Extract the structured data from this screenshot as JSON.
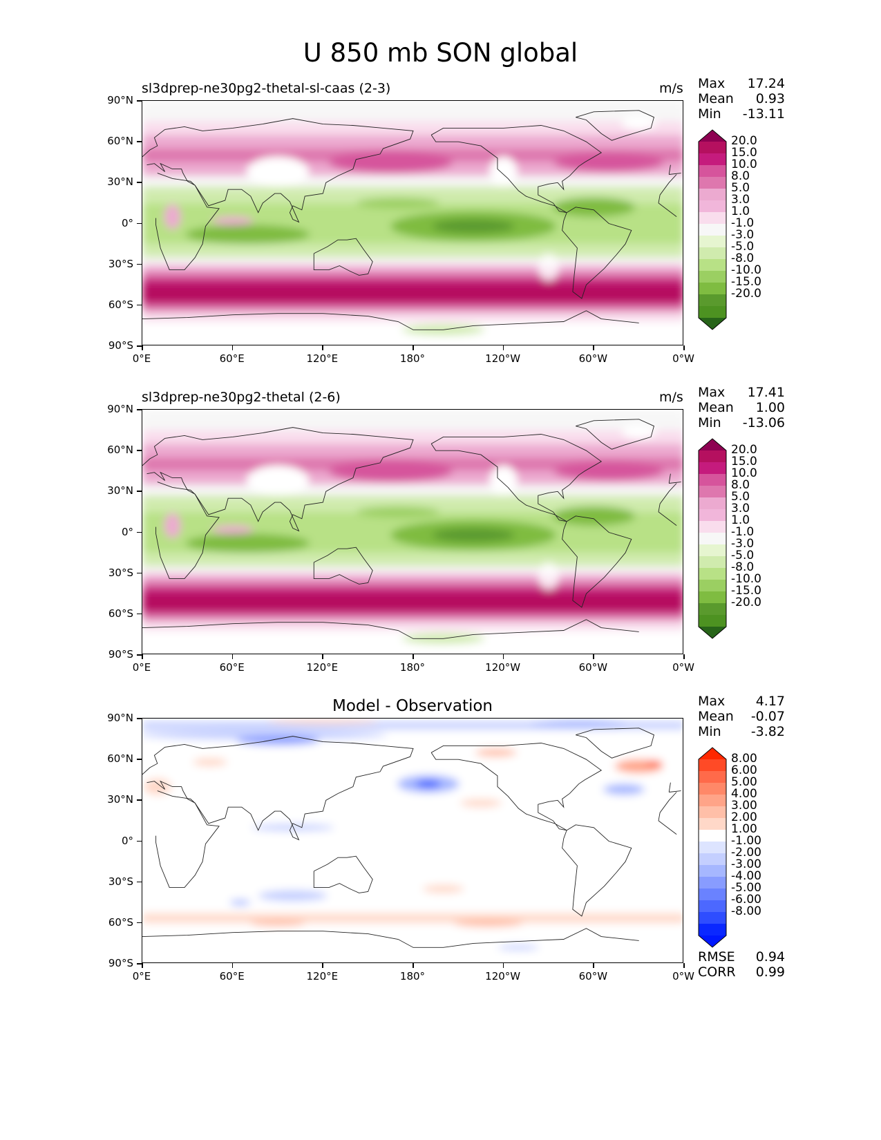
{
  "figure_title": "U 850 mb SON global",
  "x_ticks": [
    "0°E",
    "60°E",
    "120°E",
    "180°",
    "120°W",
    "60°W",
    "0°W"
  ],
  "y_ticks": [
    "90°N",
    "60°N",
    "30°N",
    "0°",
    "30°S",
    "60°S",
    "90°S"
  ],
  "panels": [
    {
      "title": "sl3dprep-ne30pg2-thetal-sl-caas (2-3)",
      "units": "m/s",
      "stats": [
        {
          "label": "Max",
          "value": "17.24"
        },
        {
          "label": "Mean",
          "value": "0.93"
        },
        {
          "label": "Min",
          "value": "-13.11"
        }
      ]
    },
    {
      "title": "sl3dprep-ne30pg2-thetal (2-6)",
      "units": "m/s",
      "stats": [
        {
          "label": "Max",
          "value": "17.41"
        },
        {
          "label": "Mean",
          "value": "1.00"
        },
        {
          "label": "Min",
          "value": "-13.06"
        }
      ]
    },
    {
      "title": "Model - Observation",
      "units": "",
      "stats": [
        {
          "label": "Max",
          "value": "4.17"
        },
        {
          "label": "Mean",
          "value": "-0.07"
        },
        {
          "label": "Min",
          "value": "-3.82"
        }
      ],
      "metrics": [
        {
          "label": "RMSE",
          "value": "0.94"
        },
        {
          "label": "CORR",
          "value": "0.99"
        }
      ]
    }
  ],
  "colorbar_main": {
    "labels": [
      "20.0",
      "15.0",
      "10.0",
      "8.0",
      "5.0",
      "3.0",
      "1.0",
      "-1.0",
      "-3.0",
      "-5.0",
      "-8.0",
      "-10.0",
      "-15.0",
      "-20.0"
    ],
    "colors": [
      "#8e0152",
      "#b5105f",
      "#c51b7d",
      "#d6549c",
      "#de77ae",
      "#ecaad0",
      "#f1b6da",
      "#f9dded",
      "#f7f7f7",
      "#e6f5d0",
      "#d0ebae",
      "#b8e186",
      "#9bcf62",
      "#7fbc41",
      "#5a9a2d",
      "#4d9221",
      "#276419"
    ]
  },
  "colorbar_diff": {
    "labels": [
      "8.00",
      "6.00",
      "5.00",
      "4.00",
      "3.00",
      "2.00",
      "1.00",
      "-1.00",
      "-2.00",
      "-3.00",
      "-4.00",
      "-5.00",
      "-6.00",
      "-8.00"
    ],
    "colors": [
      "#ff2800",
      "#ff4a26",
      "#ff6a4a",
      "#ff8868",
      "#ffa488",
      "#ffbfa8",
      "#ffd8c8",
      "#ffffff",
      "#dde4ff",
      "#c4cfff",
      "#a6b7ff",
      "#889cff",
      "#6a82ff",
      "#4c68ff",
      "#2e4dff",
      "#0a28ff",
      "#0018ff"
    ]
  }
}
